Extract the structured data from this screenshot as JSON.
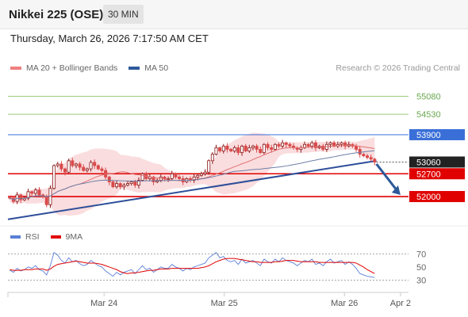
{
  "header": {
    "title": "Nikkei 225 (OSE)",
    "timeframe": "30 MIN",
    "timestamp": "Thursday, March 26, 2026 7:17:50 AM CET"
  },
  "legend": {
    "items": [
      {
        "label": "MA 20 + Bollinger Bands",
        "color": "#f08080"
      },
      {
        "label": "MA 50",
        "color": "#2e5a9a"
      }
    ],
    "credit": "Research © 2026 Trading Central"
  },
  "rsi_legend": {
    "items": [
      {
        "label": "RSI",
        "color": "#5b7fd6"
      },
      {
        "label": "9MA",
        "color": "#e00000"
      }
    ]
  },
  "colors": {
    "candle_up": "#8b1a1a",
    "candle_down": "#d94a4a",
    "target_green": "#9acd7a",
    "support_red": "#e00000",
    "resistance_blue": "#3a6fd8",
    "trendline": "#2e4f99",
    "arrow": "#2e5a9a",
    "current_price_bg": "#222222"
  },
  "chart_data": {
    "type": "candlestick",
    "x_axis": {
      "range": [
        0,
        100
      ],
      "ticks": [
        {
          "x": 24,
          "label": "Mar 24"
        },
        {
          "x": 54,
          "label": "Mar 25"
        },
        {
          "x": 84,
          "label": "Mar 26"
        },
        {
          "x": 98,
          "label": "Apr 2"
        }
      ]
    },
    "y_axis": {
      "range": [
        51100,
        55700
      ],
      "position": "right"
    },
    "levels": [
      {
        "label": "55080",
        "value": 55080,
        "kind": "target"
      },
      {
        "label": "54530",
        "value": 54530,
        "kind": "target"
      },
      {
        "label": "53900",
        "value": 53900,
        "kind": "resistance"
      },
      {
        "label": "53060",
        "value": 53060,
        "kind": "current"
      },
      {
        "label": "52700",
        "value": 52700,
        "kind": "support"
      },
      {
        "label": "52000",
        "value": 52000,
        "kind": "support"
      }
    ],
    "closes": [
      51950,
      51850,
      52050,
      51900,
      51950,
      52150,
      52100,
      52200,
      52050,
      52000,
      51750,
      52250,
      52950,
      53000,
      52850,
      52750,
      53100,
      52950,
      53000,
      52900,
      52800,
      52850,
      53050,
      52950,
      52850,
      52800,
      52600,
      52450,
      52300,
      52400,
      52300,
      52350,
      52400,
      52450,
      52350,
      52500,
      52700,
      52550,
      52600,
      52450,
      52500,
      52600,
      52550,
      52550,
      52700,
      52600,
      52550,
      52450,
      52550,
      52500,
      52600,
      52650,
      52700,
      52750,
      53100,
      53300,
      53500,
      53400,
      53550,
      53450,
      53400,
      53500,
      53350,
      53550,
      53400,
      53500,
      53550,
      53450,
      53350,
      53600,
      53500,
      53450,
      53600,
      53550,
      53650,
      53600,
      53550,
      53500,
      53450,
      53500,
      53600,
      53550,
      53650,
      53500,
      53550,
      53450,
      53600,
      53650,
      53550,
      53600,
      53650,
      53550,
      53600,
      53550,
      53450,
      53300,
      53250,
      53200,
      53150,
      53060
    ],
    "trendline": {
      "from": [
        0,
        51300
      ],
      "to": [
        92,
        53100
      ]
    },
    "arrow": {
      "from": [
        92,
        53000
      ],
      "to": [
        98,
        52050
      ]
    },
    "rsi": {
      "y_range": [
        15,
        80
      ],
      "ticks": [
        70,
        50,
        30
      ],
      "overbought": 70,
      "oversold": 30,
      "rsi": [
        45,
        42,
        48,
        44,
        46,
        50,
        48,
        52,
        46,
        44,
        38,
        52,
        72,
        68,
        60,
        56,
        64,
        58,
        60,
        55,
        52,
        54,
        60,
        56,
        52,
        50,
        44,
        40,
        36,
        42,
        38,
        42,
        44,
        46,
        40,
        46,
        52,
        46,
        48,
        42,
        46,
        50,
        48,
        48,
        54,
        50,
        48,
        44,
        48,
        46,
        50,
        52,
        54,
        56,
        64,
        68,
        72,
        64,
        66,
        60,
        58,
        60,
        54,
        62,
        56,
        58,
        60,
        56,
        52,
        62,
        58,
        56,
        62,
        58,
        64,
        60,
        58,
        56,
        52,
        56,
        60,
        58,
        62,
        54,
        56,
        52,
        58,
        62,
        56,
        58,
        60,
        54,
        58,
        54,
        48,
        40,
        38,
        36,
        35,
        34
      ],
      "ma9": [
        46,
        45,
        45,
        45,
        46,
        46,
        46,
        47,
        47,
        47,
        45,
        47,
        51,
        54,
        55,
        56,
        57,
        58,
        59,
        58,
        57,
        56,
        56,
        56,
        55,
        54,
        52,
        50,
        48,
        46,
        43,
        41,
        40,
        41,
        41,
        42,
        43,
        44,
        45,
        45,
        46,
        47,
        47,
        47,
        48,
        48,
        48,
        48,
        48,
        48,
        48,
        48,
        49,
        50,
        52,
        55,
        58,
        60,
        62,
        63,
        63,
        63,
        62,
        61,
        60,
        59,
        58,
        58,
        57,
        57,
        57,
        57,
        58,
        58,
        59,
        60,
        60,
        60,
        59,
        58,
        58,
        58,
        58,
        58,
        57,
        57,
        57,
        57,
        57,
        57,
        57,
        57,
        57,
        57,
        56,
        53,
        50,
        46,
        43,
        40
      ]
    }
  }
}
